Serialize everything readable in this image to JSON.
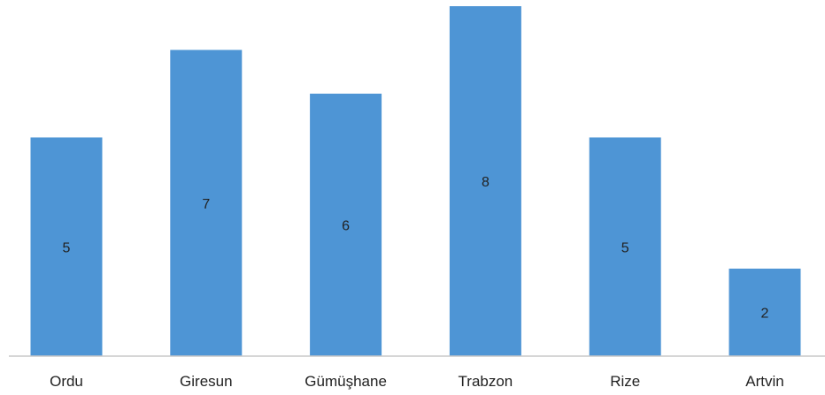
{
  "chart_data": {
    "type": "bar",
    "categories": [
      "Ordu",
      "Giresun",
      "Gümüşhane",
      "Trabzon",
      "Rize",
      "Artvin"
    ],
    "values": [
      5,
      7,
      6,
      8,
      5,
      2
    ],
    "data_labels": [
      "5",
      "7",
      "6",
      "8",
      "5",
      "2"
    ],
    "ylim": [
      0,
      8
    ],
    "grid": false,
    "legend": "none",
    "bar_color": "#4e95d5"
  }
}
